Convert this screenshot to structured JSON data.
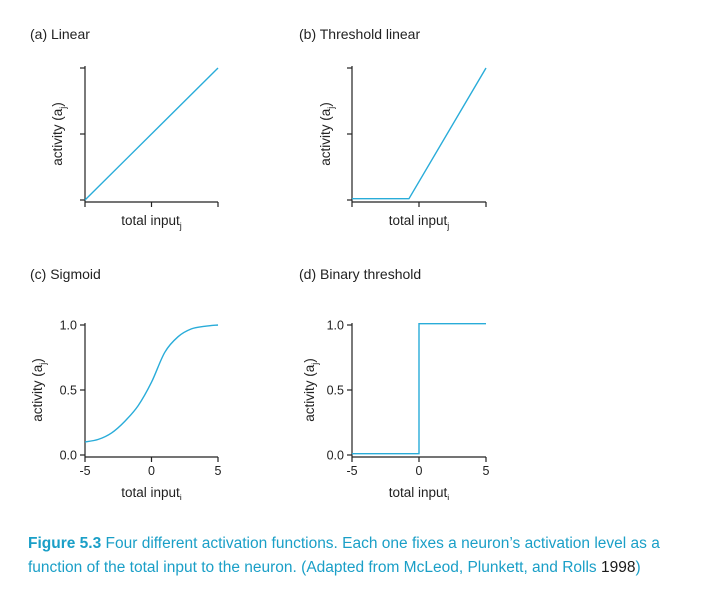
{
  "panel_titles": [
    "(a) Linear",
    "(b) Threshold linear",
    "(c) Sigmoid",
    "(d) Binary threshold"
  ],
  "chart_data": [
    {
      "type": "line",
      "title": "(a) Linear",
      "xlabel": "total input",
      "xlabel_sub": "j",
      "ylabel": "activity (a",
      "ylabel_sub": "j",
      "ylabel_close": ")",
      "x": [
        -5,
        5
      ],
      "y": [
        0,
        1
      ],
      "xlim": [
        -5,
        5
      ],
      "ylim": [
        0,
        1
      ],
      "xticks": [
        -5,
        0,
        5
      ],
      "xtick_labels": [
        "",
        "",
        ""
      ],
      "yticks": [
        0,
        0.5,
        1
      ],
      "ytick_labels": [
        "",
        "",
        ""
      ],
      "line_color": "#29acd9"
    },
    {
      "type": "line",
      "title": "(b) Threshold linear",
      "xlabel": "total input",
      "xlabel_sub": "j",
      "ylabel": "activity (a",
      "ylabel_sub": "j",
      "ylabel_close": ")",
      "x": [
        -5,
        -0.75,
        5
      ],
      "y": [
        0.01,
        0.01,
        1
      ],
      "xlim": [
        -5,
        5
      ],
      "ylim": [
        0,
        1
      ],
      "xticks": [
        -5,
        0,
        5
      ],
      "xtick_labels": [
        "",
        "",
        ""
      ],
      "yticks": [
        0,
        0.5,
        1
      ],
      "ytick_labels": [
        "",
        "",
        ""
      ],
      "line_color": "#29acd9"
    },
    {
      "type": "line",
      "title": "(c) Sigmoid",
      "xlabel": "total input",
      "xlabel_sub": "j",
      "ylabel": "activity (a",
      "ylabel_sub": "j",
      "ylabel_close": ")",
      "x": [
        -5,
        -4,
        -3,
        -2,
        -1,
        0,
        1,
        2,
        3,
        4,
        5
      ],
      "y": [
        0.1,
        0.12,
        0.17,
        0.26,
        0.38,
        0.56,
        0.79,
        0.91,
        0.97,
        0.99,
        1.0
      ],
      "xlim": [
        -5,
        5
      ],
      "ylim": [
        0,
        1
      ],
      "xticks": [
        -5,
        0,
        5
      ],
      "xtick_labels": [
        "-5",
        "0",
        "5"
      ],
      "yticks": [
        0,
        0.5,
        1
      ],
      "ytick_labels": [
        "0.0",
        "0.5",
        "1.0"
      ],
      "line_color": "#29acd9"
    },
    {
      "type": "line",
      "title": "(d) Binary threshold",
      "xlabel": "total input",
      "xlabel_sub": "j",
      "ylabel": "activity (a",
      "ylabel_sub": "j",
      "ylabel_close": ")",
      "x": [
        -5,
        0,
        0,
        5
      ],
      "y": [
        0.01,
        0.01,
        1.01,
        1.01
      ],
      "xlim": [
        -5,
        5
      ],
      "ylim": [
        0,
        1
      ],
      "xticks": [
        -5,
        0,
        5
      ],
      "xtick_labels": [
        "-5",
        "0",
        "5"
      ],
      "yticks": [
        0,
        0.5,
        1
      ],
      "ytick_labels": [
        "0.0",
        "0.5",
        "1.0"
      ],
      "line_color": "#29acd9"
    }
  ],
  "caption": {
    "label": "Figure 5.3",
    "text": " Four different activation functions. Each one fixes a neuron’s activation level as a function of the total input to the neuron. (Adapted from McLeod, Plunkett, and Rolls ",
    "year": "1998",
    "close": ")"
  }
}
